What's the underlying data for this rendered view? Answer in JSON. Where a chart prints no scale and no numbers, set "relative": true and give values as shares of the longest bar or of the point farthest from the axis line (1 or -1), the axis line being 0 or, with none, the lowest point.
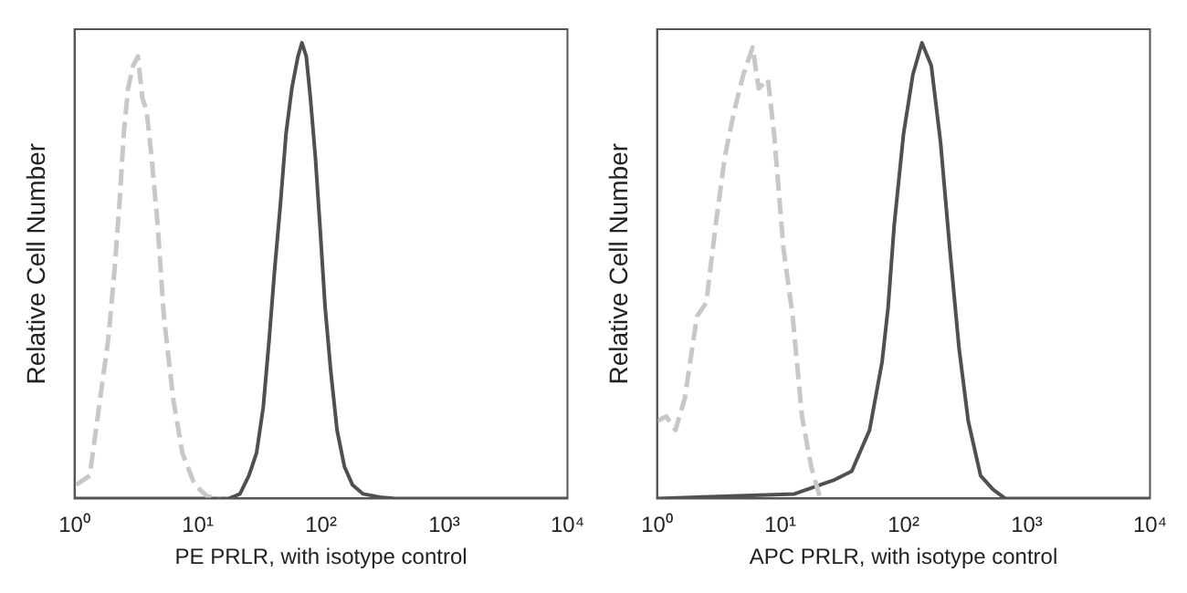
{
  "chart_data": [
    {
      "type": "line",
      "xlabel": "PE PRLR, with isotype control",
      "ylabel": "Relative Cell Number",
      "relative": true,
      "log": "x",
      "tick_labels": "x",
      "marker": "none",
      "legend": false,
      "xlim": [
        1,
        10000
      ],
      "xticks": [
        {
          "value": 1,
          "label": "10⁰"
        },
        {
          "value": 10,
          "label": "10¹"
        },
        {
          "value": 100,
          "label": "10²"
        },
        {
          "value": 1000,
          "label": "10³"
        },
        {
          "value": 10000,
          "label": "10⁴"
        }
      ],
      "series": [
        {
          "color": "#c8c8c8",
          "line_style": "dashed",
          "x": [
            1.03,
            1.33,
            1.58,
            1.88,
            2.11,
            2.32,
            2.51,
            2.72,
            2.99,
            3.27,
            3.55,
            3.85,
            4.22,
            4.73,
            5.31,
            6.31,
            7.5,
            9.44,
            11.9,
            15
          ],
          "values": [
            0.03,
            0.05,
            0.2,
            0.35,
            0.5,
            0.65,
            0.8,
            0.9,
            0.95,
            0.97,
            0.88,
            0.85,
            0.75,
            0.6,
            0.4,
            0.22,
            0.1,
            0.03,
            0.005,
            0
          ]
        },
        {
          "color": "#505050",
          "line_style": "solid",
          "x": [
            1,
            18,
            22,
            26,
            30,
            34,
            38,
            42,
            47,
            52,
            58,
            65,
            70,
            76,
            82,
            90,
            98,
            108,
            120,
            135,
            155,
            180,
            220,
            300,
            400,
            10000
          ],
          "values": [
            0,
            0,
            0.01,
            0.05,
            0.1,
            0.2,
            0.35,
            0.5,
            0.65,
            0.8,
            0.9,
            0.97,
            1,
            0.97,
            0.88,
            0.75,
            0.6,
            0.42,
            0.28,
            0.15,
            0.07,
            0.03,
            0.01,
            0.003,
            0,
            0
          ]
        }
      ]
    },
    {
      "type": "line",
      "xlabel": "APC PRLR, with isotype control",
      "ylabel": "Relative Cell Number",
      "relative": true,
      "log": "x",
      "tick_labels": "x",
      "marker": "none",
      "legend": false,
      "xlim": [
        1,
        10000
      ],
      "xticks": [
        {
          "value": 1,
          "label": "10⁰"
        },
        {
          "value": 10,
          "label": "10¹"
        },
        {
          "value": 100,
          "label": "10²"
        },
        {
          "value": 1000,
          "label": "10³"
        },
        {
          "value": 10000,
          "label": "10⁴"
        }
      ],
      "series": [
        {
          "color": "#c8c8c8",
          "line_style": "dashed",
          "x": [
            1,
            1.19,
            1.41,
            1.68,
            2.11,
            2.51,
            2.99,
            3.55,
            4.22,
            5.01,
            5.96,
            6.68,
            7.94,
            8.91,
            10.6,
            12.6,
            15,
            17.8,
            21.1
          ],
          "values": [
            0.17,
            0.18,
            0.15,
            0.22,
            0.4,
            0.43,
            0.6,
            0.75,
            0.85,
            0.93,
            0.99,
            0.9,
            0.92,
            0.8,
            0.55,
            0.4,
            0.18,
            0.07,
            0
          ]
        },
        {
          "color": "#505050",
          "line_style": "solid",
          "x": [
            1,
            13,
            27,
            38,
            53,
            67,
            75,
            84,
            100,
            119,
            141,
            168,
            200,
            237,
            282,
            335,
            422,
            531,
            668,
            10000
          ],
          "values": [
            0,
            0.01,
            0.04,
            0.06,
            0.15,
            0.3,
            0.42,
            0.6,
            0.8,
            0.93,
            1,
            0.95,
            0.78,
            0.55,
            0.33,
            0.17,
            0.05,
            0.02,
            0,
            0
          ]
        }
      ]
    }
  ]
}
